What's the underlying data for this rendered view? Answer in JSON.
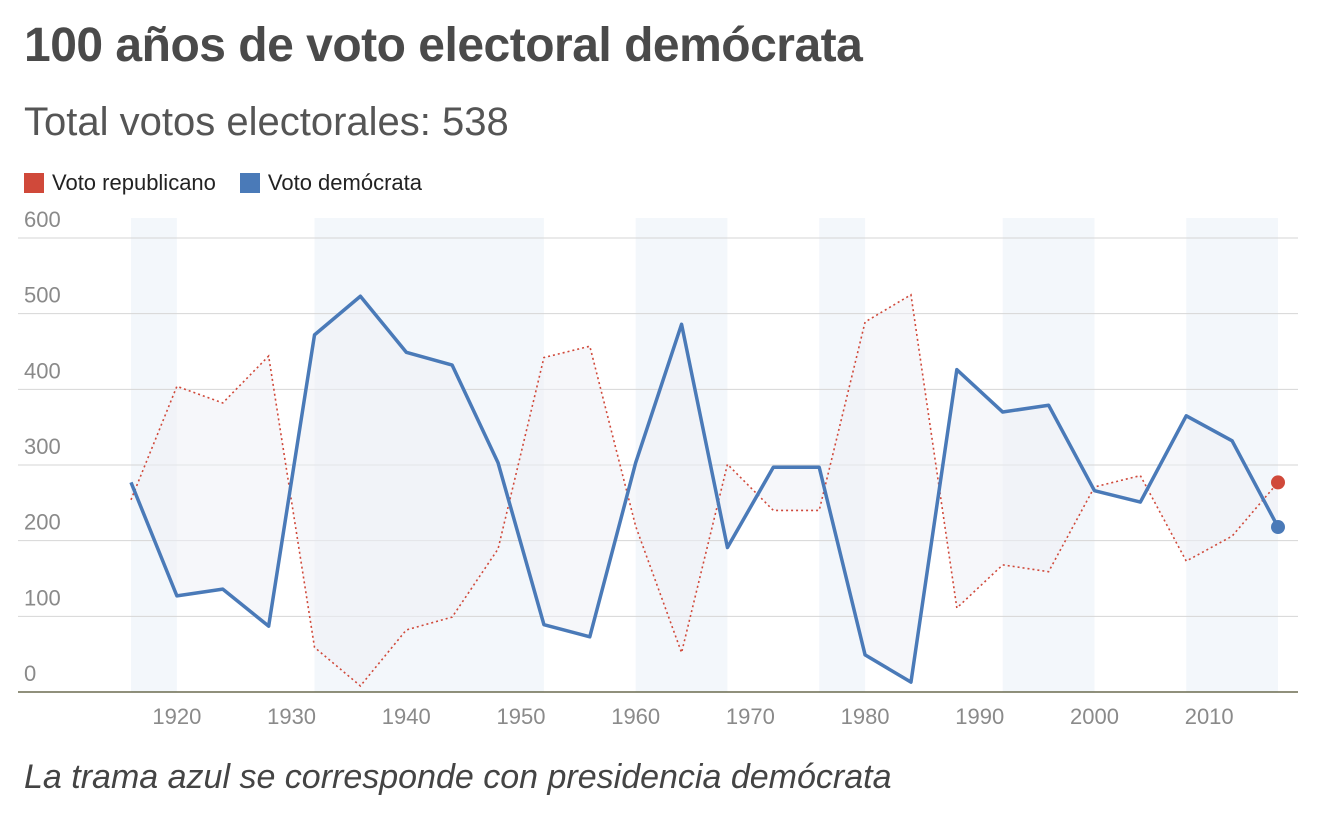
{
  "title": "100 años de  voto electoral demócrata",
  "subtitle": "Total votos electorales: 538",
  "footnote": "La trama azul se corresponde con presidencia demócrata",
  "colors": {
    "republican": "#d0493a",
    "democrat": "#4a7ab8",
    "band": "#f3f7fb",
    "grid": "#d6d6d6",
    "axis": "#6b6b50"
  },
  "chart_data": {
    "type": "line",
    "title": "100 años de  voto electoral demócrata",
    "subtitle": "Total votos electorales: 538",
    "legend_placement": "top-left",
    "grid": true,
    "ylim": [
      0,
      600
    ],
    "yticks": [
      0,
      100,
      200,
      300,
      400,
      500,
      600
    ],
    "xlim": [
      1912,
      2019
    ],
    "xticks": [
      1920,
      1930,
      1940,
      1950,
      1960,
      1970,
      1980,
      1990,
      2000,
      2010
    ],
    "democratic_presidency_bands": [
      [
        1916,
        1920
      ],
      [
        1932,
        1952
      ],
      [
        1960,
        1968
      ],
      [
        1976,
        1980
      ],
      [
        1992,
        2000
      ],
      [
        2008,
        2016
      ]
    ],
    "x": [
      1916,
      1920,
      1924,
      1928,
      1932,
      1936,
      1940,
      1944,
      1948,
      1952,
      1956,
      1960,
      1964,
      1968,
      1972,
      1976,
      1980,
      1984,
      1988,
      1992,
      1996,
      2000,
      2004,
      2008,
      2012,
      2016
    ],
    "series": [
      {
        "name": "Voto republicano",
        "style": "dotted",
        "values": [
          254,
          404,
          382,
          444,
          59,
          8,
          82,
          99,
          189,
          442,
          457,
          219,
          52,
          301,
          240,
          240,
          489,
          525,
          111,
          168,
          159,
          271,
          286,
          173,
          206,
          277
        ]
      },
      {
        "name": "Voto demócrata",
        "style": "solid",
        "values": [
          277,
          127,
          136,
          87,
          472,
          523,
          449,
          432,
          303,
          89,
          73,
          303,
          486,
          191,
          297,
          297,
          49,
          13,
          426,
          370,
          379,
          266,
          251,
          365,
          332,
          218
        ]
      }
    ]
  }
}
